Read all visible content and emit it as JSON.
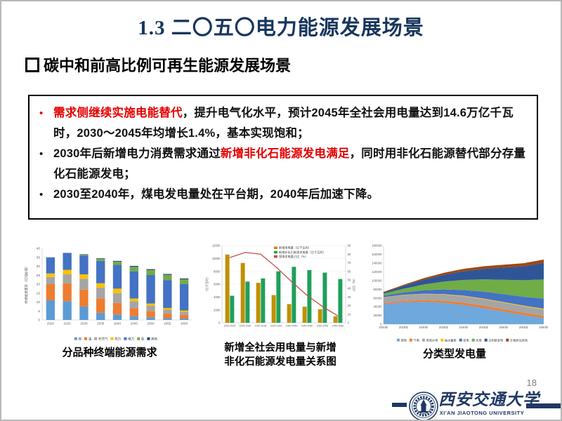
{
  "slide": {
    "title": "1.3 二〇五〇电力能源发展场景",
    "subtitle": "碳中和前高比例可再生能源发展场景",
    "page_number": "18",
    "colors": {
      "title_navy": "#17365D",
      "accent_red": "#E60000",
      "footer_navy": "#1F3864",
      "page_number_gray": "#7F7F7F"
    }
  },
  "callout": {
    "bullets": [
      {
        "marker": "•",
        "marker_color": "#E60000",
        "segments": [
          {
            "text": "需求侧继续实施电能替代",
            "color": "#E60000"
          },
          {
            "text": "，提升电气化水平，预计2045年全社会用电量达到14.6万亿千瓦时，2030～2045年均增长1.4%，基本实现饱和；",
            "color": "#111111"
          }
        ]
      },
      {
        "marker": "•",
        "marker_color": "#111111",
        "segments": [
          {
            "text": "2030年后新增电力消费需求通过",
            "color": "#111111"
          },
          {
            "text": "新增非化石能源发电满足",
            "color": "#E60000"
          },
          {
            "text": "，同时用非化石能源替代部分存量化石能源发电；",
            "color": "#111111"
          }
        ]
      },
      {
        "marker": "•",
        "marker_color": "#111111",
        "segments": [
          {
            "text": "2030至2040年，煤电发电量处在平台期，2040年后加速下降。",
            "color": "#111111"
          }
        ]
      }
    ]
  },
  "captions": {
    "left": "分品种终端能源需求",
    "middle": "新增全社会用电量与新增\n非化石能源发电量关系图",
    "right": "分类型发电量"
  },
  "footer": {
    "university_cn": "西安交通大学",
    "university_en": "XI'AN JIAOTONG UNIVERSITY"
  },
  "chart_data": [
    {
      "type": "bar",
      "stacked": true,
      "title": "分品种终端能源需求",
      "ylabel": "终端能源需求（亿吨标煤）",
      "ylim": [
        0,
        40
      ],
      "ytick_step": 5,
      "grid": false,
      "legend_position": "bottom",
      "categories": [
        "2020",
        "2025",
        "2030",
        "2035",
        "2040",
        "2045",
        "2050",
        "2055",
        "2060"
      ],
      "series": [
        {
          "name": "煤",
          "color": "#5B9BD5",
          "values": [
            11,
            10.5,
            7.5,
            4,
            3,
            2,
            1.5,
            1,
            0.8
          ]
        },
        {
          "name": "油",
          "color": "#ED7D31",
          "values": [
            9,
            10,
            9.5,
            8,
            6.5,
            4.5,
            3.5,
            2.5,
            2
          ]
        },
        {
          "name": "天然气",
          "color": "#A5A5A5",
          "values": [
            4,
            5,
            6,
            6,
            5.5,
            4,
            3,
            2.2,
            1.7
          ]
        },
        {
          "name": "热力",
          "color": "#FFC000",
          "values": [
            2,
            2.5,
            2.5,
            2.5,
            2.5,
            1.5,
            1.2,
            1,
            0.8
          ]
        },
        {
          "name": "电力",
          "color": "#4472C4",
          "values": [
            9,
            9.5,
            10.4,
            12.5,
            13.3,
            15.2,
            15.9,
            15.6,
            14.7
          ]
        },
        {
          "name": "氢",
          "color": "#70AD47",
          "values": [
            0,
            0,
            0.5,
            1.2,
            1.8,
            2.5,
            2.8,
            2.9,
            2.7
          ]
        },
        {
          "name": "其他",
          "color": "#264478",
          "values": [
            0,
            0,
            0.3,
            0.3,
            0.4,
            0.5,
            0.5,
            0.5,
            0.5
          ]
        }
      ]
    },
    {
      "type": "bar+line",
      "title": "新增全社会用电量与新增非化石能源发电量关系图",
      "categories": [
        "2020-2025",
        "2025-2030",
        "2030-2035",
        "2035-2040",
        "2040-2045",
        "2045-2050",
        "2050-2055",
        "2055-2060"
      ],
      "ylabel_left": "（亿千瓦时）",
      "ylabel_right": "占比（%）",
      "ylim_left": [
        0,
        12000
      ],
      "ytick_left": 2000,
      "ylim_right": [
        0,
        90
      ],
      "ytick_right": 10,
      "grid": true,
      "legend_position": "top-right",
      "bar_series": [
        {
          "name": "新增用电量（亿千瓦时）",
          "color": "#BF9000",
          "values": [
            10600,
            9300,
            6200,
            4300,
            2900,
            2500,
            2100,
            1000
          ]
        },
        {
          "name": "新增非化石能源发电量（亿千瓦时）",
          "color": "#1EA05A",
          "values": [
            4200,
            6400,
            6900,
            8000,
            8700,
            8200,
            7800,
            6800
          ]
        }
      ],
      "line_series": {
        "name": "煤电发电量占比（%）",
        "color": "#C0504D",
        "values": [
          76,
          82,
          80,
          65,
          48,
          32,
          19,
          8
        ]
      }
    },
    {
      "type": "area",
      "stacked": true,
      "title": "分类型发电量",
      "ylabel": "",
      "ylim": [
        0,
        180000
      ],
      "ytick_step": 20000,
      "grid": false,
      "legend_position": "bottom",
      "categories": [
        "2020年",
        "2025年",
        "2030年",
        "2035年",
        "2040年",
        "2045年",
        "2050年",
        "2055年",
        "2060年"
      ],
      "series": [
        {
          "name": "煤电",
          "color": "#6FA8DC",
          "values": [
            46000,
            50000,
            51000,
            49000,
            44000,
            37000,
            29000,
            21000,
            14000
          ]
        },
        {
          "name": "气电",
          "color": "#ED7D31",
          "values": [
            2500,
            3200,
            4000,
            4500,
            5000,
            5200,
            5200,
            5000,
            4800
          ]
        },
        {
          "name": "常规水电",
          "color": "#A5A5A5",
          "values": [
            13000,
            13500,
            14000,
            14500,
            15000,
            15000,
            15000,
            15000,
            15000
          ]
        },
        {
          "name": "抽水蓄能",
          "color": "#FFC000",
          "values": [
            300,
            500,
            800,
            1000,
            1200,
            1400,
            1500,
            1600,
            1700
          ]
        },
        {
          "name": "核电",
          "color": "#4472C4",
          "values": [
            3600,
            5500,
            8000,
            10500,
            13000,
            16000,
            18000,
            20000,
            23000
          ]
        },
        {
          "name": "风电",
          "color": "#70AD47",
          "values": [
            4500,
            8500,
            13000,
            18000,
            23000,
            28000,
            33000,
            38000,
            44000
          ]
        },
        {
          "name": "太阳能发电",
          "color": "#2F5597",
          "values": [
            2500,
            6500,
            11000,
            15500,
            20000,
            24000,
            28000,
            32000,
            38000
          ]
        },
        {
          "name": "生物质及其他",
          "color": "#9E480E",
          "values": [
            1500,
            2500,
            3500,
            4500,
            5500,
            6000,
            6500,
            7000,
            7500
          ]
        }
      ]
    }
  ]
}
